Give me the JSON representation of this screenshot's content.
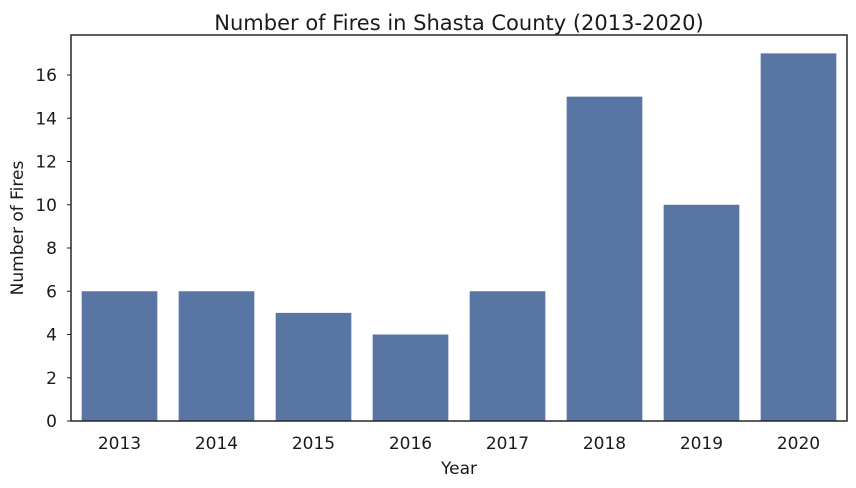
{
  "chart_data": {
    "type": "bar",
    "title": "Number of Fires in Shasta County (2013-2020)",
    "xlabel": "Year",
    "ylabel": "Number of Fires",
    "categories": [
      "2013",
      "2014",
      "2015",
      "2016",
      "2017",
      "2018",
      "2019",
      "2020"
    ],
    "values": [
      6,
      6,
      5,
      4,
      6,
      15,
      10,
      17
    ],
    "ylim": [
      0,
      17.85
    ],
    "yticks": [
      0,
      2,
      4,
      6,
      8,
      10,
      12,
      14,
      16
    ],
    "grid": false,
    "bar_color": "#5875a4"
  }
}
